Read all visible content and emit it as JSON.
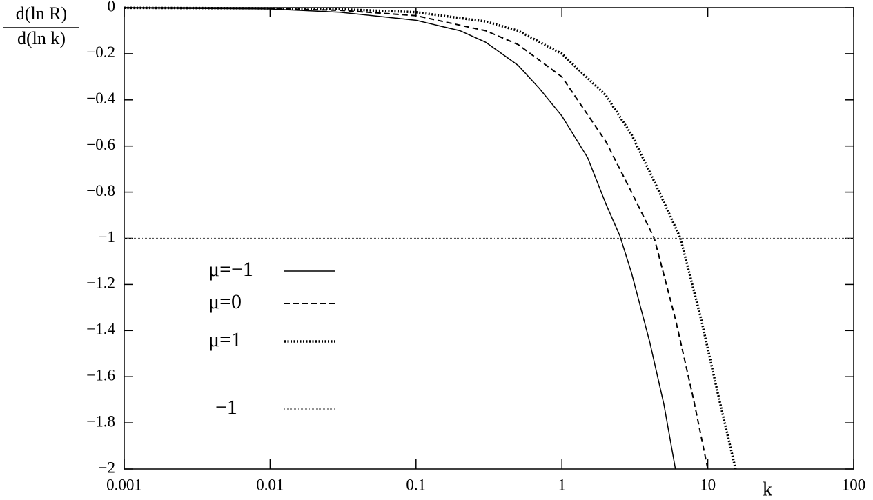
{
  "chart_data": {
    "type": "line",
    "xlabel": "k",
    "ylabel_numerator": "d(ln R)",
    "ylabel_denominator": "d(ln k)",
    "xscale": "log",
    "xlim": [
      0.001,
      100
    ],
    "xticks": [
      0.001,
      0.01,
      0.1,
      1,
      10,
      100
    ],
    "ylim": [
      -2,
      0
    ],
    "yticks": [
      {
        "value": -2,
        "label": "−2"
      },
      {
        "value": -1.8,
        "label": "−1.8"
      },
      {
        "value": -1.6,
        "label": "−1.6"
      },
      {
        "value": -1.4,
        "label": "−1.4"
      },
      {
        "value": -1.2,
        "label": "−1.2"
      },
      {
        "value": -1,
        "label": "−1"
      },
      {
        "value": -0.8,
        "label": "−0.8"
      },
      {
        "value": -0.6,
        "label": "−0.6"
      },
      {
        "value": -0.4,
        "label": "−0.4"
      },
      {
        "value": -0.2,
        "label": "−0.2"
      },
      0
    ],
    "series": [
      {
        "name": "μ=−1",
        "color": "#000000",
        "dash": "solid",
        "x": [
          0.001,
          0.01,
          0.03,
          0.1,
          0.2,
          0.3,
          0.5,
          0.7,
          1,
          1.5,
          2,
          2.5,
          3,
          4,
          5,
          6
        ],
        "values": [
          -0.001,
          -0.006,
          -0.02,
          -0.055,
          -0.1,
          -0.15,
          -0.25,
          -0.35,
          -0.47,
          -0.65,
          -0.85,
          -0.99,
          -1.15,
          -1.45,
          -1.72,
          -2
        ]
      },
      {
        "name": "μ=0",
        "color": "#000000",
        "dash": "dashed",
        "x": [
          0.001,
          0.01,
          0.03,
          0.1,
          0.3,
          0.5,
          1,
          2,
          3,
          4.3,
          6,
          8,
          10
        ],
        "values": [
          -0.001,
          -0.004,
          -0.012,
          -0.035,
          -0.1,
          -0.16,
          -0.3,
          -0.58,
          -0.8,
          -1,
          -1.35,
          -1.7,
          -2
        ]
      },
      {
        "name": "μ=1",
        "color": "#000000",
        "dash": "dotted",
        "x": [
          0.001,
          0.01,
          0.03,
          0.1,
          0.3,
          0.5,
          1,
          2,
          3,
          4.5,
          6.5,
          9,
          12,
          15.5
        ],
        "values": [
          -0.001,
          -0.003,
          -0.007,
          -0.02,
          -0.06,
          -0.1,
          -0.2,
          -0.38,
          -0.55,
          -0.78,
          -1,
          -1.35,
          -1.7,
          -2
        ]
      },
      {
        "name": "−1",
        "color": "#555555",
        "dash": "thin",
        "x": [
          0.001,
          100
        ],
        "values": [
          -1,
          -1
        ]
      }
    ]
  }
}
